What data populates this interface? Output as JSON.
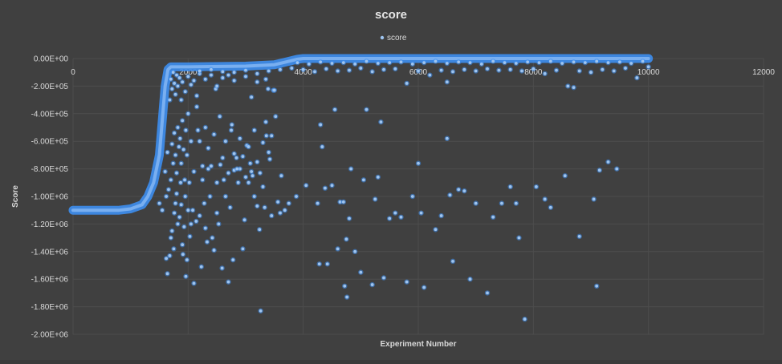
{
  "chart_data": {
    "type": "scatter",
    "title": "score",
    "legend": {
      "label": "score",
      "placement": "top-center"
    },
    "xlabel": "Experiment Number",
    "ylabel": "Score",
    "xlim": [
      0,
      12000
    ],
    "ylim": [
      -2000000,
      0
    ],
    "x_ticks": [
      "0",
      "2000",
      "4000",
      "6000",
      "8000",
      "10000",
      "12000"
    ],
    "y_ticks": [
      "0.00E+00",
      "-2.00E+05",
      "-4.00E+05",
      "-6.00E+05",
      "-8.00E+05",
      "-1.00E+06",
      "-1.20E+06",
      "-1.40E+06",
      "-1.60E+06",
      "-1.80E+06",
      "-2.00E+06"
    ],
    "colors": {
      "marker_fill": "#9fc5f0",
      "marker_glow": "#3d8ef0",
      "background": "#404040",
      "grid": "#4d4d4d",
      "text": "#d9d9d9"
    },
    "grid": true,
    "frontier": {
      "x": [
        0,
        800,
        1000,
        1200,
        1300,
        1400,
        1450,
        1500,
        1550,
        1600,
        1650,
        1700,
        2000,
        3000,
        3500,
        3700,
        3900,
        4000,
        5000,
        6000,
        7000,
        8000,
        9000,
        10000
      ],
      "y": [
        -1100000,
        -1100000,
        -1090000,
        -1060000,
        -1000000,
        -900000,
        -800000,
        -700000,
        -450000,
        -200000,
        -80000,
        -60000,
        -60000,
        -55000,
        -45000,
        -25000,
        -5000,
        0,
        0,
        0,
        0,
        0,
        0,
        0
      ]
    },
    "points": [
      [
        1620,
        -1450000
      ],
      [
        1640,
        -1560000
      ],
      [
        1680,
        -1430000
      ],
      [
        1700,
        -1300000
      ],
      [
        1720,
        -1250000
      ],
      [
        1750,
        -1380000
      ],
      [
        1760,
        -1120000
      ],
      [
        1780,
        -1050000
      ],
      [
        1800,
        -980000
      ],
      [
        1820,
        -1200000
      ],
      [
        1850,
        -1150000
      ],
      [
        1870,
        -900000
      ],
      [
        1880,
        -1060000
      ],
      [
        1900,
        -1350000
      ],
      [
        1910,
        -1420000
      ],
      [
        1930,
        -1220000
      ],
      [
        1950,
        -1000000
      ],
      [
        1960,
        -1580000
      ],
      [
        1980,
        -1460000
      ],
      [
        2000,
        -1100000
      ],
      [
        2030,
        -1290000
      ],
      [
        2050,
        -1200000
      ],
      [
        2080,
        -1100000
      ],
      [
        2100,
        -1630000
      ],
      [
        2140,
        -1180000
      ],
      [
        2170,
        -520000
      ],
      [
        2200,
        -1140000
      ],
      [
        2230,
        -1510000
      ],
      [
        2250,
        -780000
      ],
      [
        2280,
        -1050000
      ],
      [
        2300,
        -1230000
      ],
      [
        2330,
        -1330000
      ],
      [
        2350,
        -800000
      ],
      [
        2380,
        -1000000
      ],
      [
        2420,
        -1300000
      ],
      [
        2450,
        -1390000
      ],
      [
        2480,
        -220000
      ],
      [
        2500,
        -1120000
      ],
      [
        2530,
        -1200000
      ],
      [
        2560,
        -770000
      ],
      [
        2590,
        -1520000
      ],
      [
        2620,
        -880000
      ],
      [
        2650,
        -1000000
      ],
      [
        2700,
        -1620000
      ],
      [
        2730,
        -1080000
      ],
      [
        2760,
        -480000
      ],
      [
        2780,
        -1460000
      ],
      [
        2800,
        -810000
      ],
      [
        2840,
        -720000
      ],
      [
        2870,
        -900000
      ],
      [
        2900,
        -800000
      ],
      [
        2950,
        -1380000
      ],
      [
        2980,
        -1170000
      ],
      [
        3020,
        -630000
      ],
      [
        3050,
        -900000
      ],
      [
        3080,
        -760000
      ],
      [
        3120,
        -850000
      ],
      [
        3150,
        -1000000
      ],
      [
        3200,
        -1070000
      ],
      [
        3240,
        -1240000
      ],
      [
        3260,
        -1830000
      ],
      [
        3300,
        -930000
      ],
      [
        3330,
        -1080000
      ],
      [
        3360,
        -560000
      ],
      [
        3390,
        -220000
      ],
      [
        3420,
        -730000
      ],
      [
        3450,
        -1140000
      ],
      [
        3480,
        -230000
      ],
      [
        3520,
        -420000
      ],
      [
        3560,
        -1040000
      ],
      [
        3600,
        -1120000
      ],
      [
        3620,
        -850000
      ],
      [
        3680,
        -1100000
      ],
      [
        3750,
        -1050000
      ],
      [
        3880,
        -1000000
      ],
      [
        4050,
        -920000
      ],
      [
        4250,
        -1050000
      ],
      [
        4280,
        -1490000
      ],
      [
        4300,
        -480000
      ],
      [
        4330,
        -640000
      ],
      [
        4380,
        -940000
      ],
      [
        4420,
        -1490000
      ],
      [
        4500,
        -920000
      ],
      [
        4550,
        -370000
      ],
      [
        4600,
        -1380000
      ],
      [
        4640,
        -1040000
      ],
      [
        4700,
        -1040000
      ],
      [
        4720,
        -1650000
      ],
      [
        4750,
        -1310000
      ],
      [
        4760,
        -1730000
      ],
      [
        4800,
        -1160000
      ],
      [
        4830,
        -800000
      ],
      [
        4900,
        -1400000
      ],
      [
        5000,
        -1550000
      ],
      [
        5050,
        -880000
      ],
      [
        5100,
        -370000
      ],
      [
        5200,
        -1640000
      ],
      [
        5250,
        -1020000
      ],
      [
        5300,
        -860000
      ],
      [
        5350,
        -460000
      ],
      [
        5400,
        -1590000
      ],
      [
        5500,
        -1160000
      ],
      [
        5600,
        -1120000
      ],
      [
        5700,
        -1150000
      ],
      [
        5800,
        -1620000
      ],
      [
        5900,
        -1000000
      ],
      [
        6000,
        -760000
      ],
      [
        6050,
        -1120000
      ],
      [
        6100,
        -1660000
      ],
      [
        6300,
        -1240000
      ],
      [
        6400,
        -1140000
      ],
      [
        6500,
        -580000
      ],
      [
        6550,
        -990000
      ],
      [
        6600,
        -1470000
      ],
      [
        6700,
        -950000
      ],
      [
        6800,
        -960000
      ],
      [
        6900,
        -1600000
      ],
      [
        7000,
        -1050000
      ],
      [
        7200,
        -1700000
      ],
      [
        7300,
        -1150000
      ],
      [
        7450,
        -1050000
      ],
      [
        7600,
        -930000
      ],
      [
        7700,
        -1050000
      ],
      [
        7750,
        -1300000
      ],
      [
        7850,
        -1890000
      ],
      [
        8050,
        -930000
      ],
      [
        8200,
        -1020000
      ],
      [
        8300,
        -1080000
      ],
      [
        8550,
        -850000
      ],
      [
        8800,
        -1290000
      ],
      [
        9050,
        -1020000
      ],
      [
        9100,
        -1650000
      ],
      [
        9150,
        -810000
      ],
      [
        9300,
        -750000
      ],
      [
        9450,
        -800000
      ],
      [
        1500,
        -1050000
      ],
      [
        1550,
        -1100000
      ],
      [
        1600,
        -820000
      ],
      [
        1620,
        -1000000
      ],
      [
        1640,
        -680000
      ],
      [
        1660,
        -950000
      ],
      [
        1700,
        -880000
      ],
      [
        1720,
        -620000
      ],
      [
        1740,
        -760000
      ],
      [
        1760,
        -540000
      ],
      [
        1780,
        -700000
      ],
      [
        1800,
        -830000
      ],
      [
        1820,
        -500000
      ],
      [
        1840,
        -640000
      ],
      [
        1860,
        -580000
      ],
      [
        1880,
        -760000
      ],
      [
        1900,
        -450000
      ],
      [
        1920,
        -660000
      ],
      [
        1940,
        -880000
      ],
      [
        1960,
        -520000
      ],
      [
        1980,
        -700000
      ],
      [
        2000,
        -400000
      ],
      [
        2020,
        -900000
      ],
      [
        2050,
        -600000
      ],
      [
        2100,
        -820000
      ],
      [
        2150,
        -350000
      ],
      [
        2200,
        -600000
      ],
      [
        2250,
        -880000
      ],
      [
        2300,
        -500000
      ],
      [
        2350,
        -650000
      ],
      [
        2400,
        -780000
      ],
      [
        2450,
        -550000
      ],
      [
        2500,
        -900000
      ],
      [
        2550,
        -420000
      ],
      [
        2600,
        -720000
      ],
      [
        2650,
        -600000
      ],
      [
        2700,
        -830000
      ],
      [
        2750,
        -520000
      ],
      [
        2800,
        -690000
      ],
      [
        2850,
        -800000
      ],
      [
        2900,
        -580000
      ],
      [
        2950,
        -710000
      ],
      [
        3000,
        -860000
      ],
      [
        3050,
        -640000
      ],
      [
        3100,
        -820000
      ],
      [
        3150,
        -520000
      ],
      [
        3200,
        -750000
      ],
      [
        3250,
        -830000
      ],
      [
        3300,
        -610000
      ],
      [
        3350,
        -460000
      ],
      [
        3400,
        -680000
      ],
      [
        3450,
        -560000
      ],
      [
        1680,
        -300000
      ],
      [
        1700,
        -150000
      ],
      [
        1720,
        -220000
      ],
      [
        1740,
        -100000
      ],
      [
        1760,
        -180000
      ],
      [
        1780,
        -260000
      ],
      [
        1800,
        -120000
      ],
      [
        1820,
        -200000
      ],
      [
        1850,
        -140000
      ],
      [
        1880,
        -300000
      ],
      [
        1900,
        -170000
      ],
      [
        1950,
        -240000
      ],
      [
        2000,
        -130000
      ],
      [
        2050,
        -190000
      ],
      [
        2100,
        -160000
      ],
      [
        2150,
        -270000
      ],
      [
        2200,
        -110000
      ],
      [
        2300,
        -150000
      ],
      [
        2400,
        -120000
      ],
      [
        2500,
        -200000
      ],
      [
        2600,
        -140000
      ],
      [
        2700,
        -120000
      ],
      [
        2800,
        -160000
      ],
      [
        3000,
        -130000
      ],
      [
        3100,
        -280000
      ],
      [
        3200,
        -170000
      ],
      [
        3350,
        -150000
      ],
      [
        3500,
        -230000
      ],
      [
        2200,
        -90000
      ],
      [
        2400,
        -80000
      ],
      [
        2600,
        -95000
      ],
      [
        2800,
        -100000
      ],
      [
        3000,
        -85000
      ],
      [
        3200,
        -110000
      ],
      [
        3400,
        -90000
      ],
      [
        3600,
        -80000
      ],
      [
        3800,
        -70000
      ],
      [
        4000,
        -80000
      ],
      [
        4200,
        -95000
      ],
      [
        4400,
        -75000
      ],
      [
        4600,
        -90000
      ],
      [
        4800,
        -85000
      ],
      [
        5000,
        -70000
      ],
      [
        5200,
        -95000
      ],
      [
        5400,
        -80000
      ],
      [
        5600,
        -75000
      ],
      [
        5800,
        -180000
      ],
      [
        6000,
        -90000
      ],
      [
        6200,
        -120000
      ],
      [
        6400,
        -85000
      ],
      [
        6500,
        -170000
      ],
      [
        6600,
        -95000
      ],
      [
        6800,
        -80000
      ],
      [
        7000,
        -90000
      ],
      [
        7200,
        -75000
      ],
      [
        7400,
        -85000
      ],
      [
        7600,
        -80000
      ],
      [
        7800,
        -90000
      ],
      [
        8000,
        -75000
      ],
      [
        8200,
        -110000
      ],
      [
        8400,
        -85000
      ],
      [
        8600,
        -200000
      ],
      [
        8700,
        -210000
      ],
      [
        8800,
        -90000
      ],
      [
        9000,
        -100000
      ],
      [
        9200,
        -80000
      ],
      [
        9400,
        -90000
      ],
      [
        9600,
        -70000
      ],
      [
        9800,
        -140000
      ],
      [
        10000,
        -60000
      ],
      [
        3900,
        -30000
      ],
      [
        4100,
        -40000
      ],
      [
        4300,
        -25000
      ],
      [
        4500,
        -35000
      ],
      [
        4700,
        -30000
      ],
      [
        4900,
        -40000
      ],
      [
        5100,
        -20000
      ],
      [
        5300,
        -35000
      ],
      [
        5500,
        -30000
      ],
      [
        5700,
        -25000
      ],
      [
        5900,
        -40000
      ],
      [
        6100,
        -30000
      ],
      [
        6300,
        -20000
      ],
      [
        6500,
        -35000
      ],
      [
        6700,
        -25000
      ],
      [
        6900,
        -30000
      ],
      [
        7100,
        -40000
      ],
      [
        7300,
        -20000
      ],
      [
        7500,
        -30000
      ],
      [
        7700,
        -35000
      ],
      [
        7900,
        -25000
      ],
      [
        8100,
        -30000
      ],
      [
        8300,
        -20000
      ],
      [
        8500,
        -35000
      ],
      [
        8700,
        -25000
      ],
      [
        8900,
        -30000
      ],
      [
        9100,
        -20000
      ],
      [
        9300,
        -30000
      ],
      [
        9500,
        -25000
      ],
      [
        9700,
        -35000
      ],
      [
        9900,
        -20000
      ]
    ]
  }
}
